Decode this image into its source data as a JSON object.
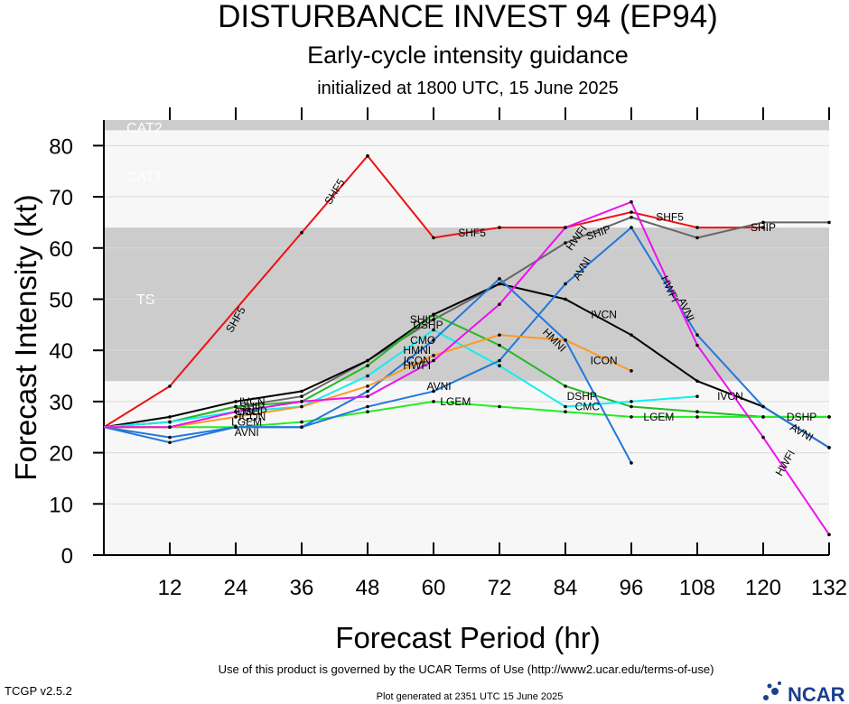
{
  "header": {
    "title": "DISTURBANCE INVEST 94 (EP94)",
    "subtitle": "Early-cycle intensity guidance",
    "init": "initialized at 1800 UTC, 15 June 2025"
  },
  "footer": {
    "terms": "Use of this product is governed by the UCAR Terms of Use (http://www2.ucar.edu/terms-of-use)",
    "version": "TCGP v2.5.2",
    "generated": "Plot generated at 2351 UTC   15 June 2025",
    "logo": "NCAR",
    "logo_icon": "ncar-logo-icon"
  },
  "chart_data": {
    "type": "line",
    "xlabel": "Forecast Period (hr)",
    "ylabel": "Forecast Intensity (kt)",
    "xlim": [
      0,
      132
    ],
    "ylim": [
      0,
      85
    ],
    "xticks": [
      12,
      24,
      36,
      48,
      60,
      72,
      84,
      96,
      108,
      120,
      132
    ],
    "yticks": [
      0,
      10,
      20,
      30,
      40,
      50,
      60,
      70,
      80
    ],
    "grid": true,
    "bands": [
      {
        "label": "TS",
        "y0": 34,
        "y1": 64,
        "color": "#cccccc"
      },
      {
        "label": "CAT1",
        "y0": 64,
        "y1": 83,
        "color": "#f7f7f7"
      },
      {
        "label": "CAT2",
        "y0": 83,
        "y1": 85,
        "color": "#cccccc"
      }
    ],
    "series": [
      {
        "name": "SHF5",
        "color": "#ee1111",
        "x": [
          0,
          12,
          36,
          48,
          60,
          72,
          84,
          96,
          108,
          120
        ],
        "y": [
          25,
          33,
          63,
          78,
          62,
          64,
          64,
          67,
          64,
          64
        ]
      },
      {
        "name": "SHIP",
        "color": "#666666",
        "x": [
          0,
          12,
          24,
          36,
          48,
          60,
          72,
          84,
          96,
          108,
          120,
          132
        ],
        "y": [
          25,
          26,
          29,
          31,
          38,
          46,
          53,
          61,
          66,
          62,
          65,
          65
        ]
      },
      {
        "name": "IVCN",
        "color": "#000000",
        "x": [
          0,
          12,
          24,
          36,
          48,
          60,
          72,
          84,
          96,
          108,
          120,
          132
        ],
        "y": [
          25,
          27,
          30,
          32,
          38,
          47,
          53,
          50,
          43,
          34,
          29,
          21
        ]
      },
      {
        "name": "DSHP",
        "color": "#22bb22",
        "x": [
          0,
          12,
          24,
          36,
          48,
          60,
          72,
          84,
          96,
          108,
          120,
          132
        ],
        "y": [
          25,
          26,
          29,
          30,
          37,
          47,
          41,
          33,
          29,
          28,
          27,
          27
        ]
      },
      {
        "name": "LGEM",
        "color": "#22ee22",
        "x": [
          0,
          12,
          24,
          36,
          48,
          60,
          72,
          84,
          96,
          108,
          120,
          132
        ],
        "y": [
          25,
          25,
          25,
          26,
          28,
          30,
          29,
          28,
          27,
          27,
          27,
          27
        ]
      },
      {
        "name": "CMC",
        "color": "#11eeee",
        "x": [
          0,
          12,
          24,
          36,
          48,
          60,
          72,
          84,
          96,
          108
        ],
        "y": [
          25,
          26,
          28,
          29,
          35,
          44,
          37,
          29,
          30,
          31
        ]
      },
      {
        "name": "HMNI",
        "color": "#2277dd",
        "x": [
          0,
          12,
          24,
          36,
          48,
          60,
          72,
          84,
          96
        ],
        "y": [
          25,
          22,
          25,
          25,
          32,
          42,
          54,
          42,
          18
        ]
      },
      {
        "name": "AVNI",
        "color": "#2277dd",
        "x": [
          0,
          12,
          24,
          36,
          48,
          60,
          72,
          84,
          96,
          108,
          120,
          132
        ],
        "y": [
          25,
          23,
          25,
          25,
          29,
          32,
          38,
          53,
          64,
          43,
          29,
          21
        ]
      },
      {
        "name": "ICON",
        "color": "#ff9922",
        "x": [
          0,
          12,
          24,
          36,
          48,
          60,
          72,
          84,
          96
        ],
        "y": [
          25,
          25,
          27,
          29,
          33,
          39,
          43,
          42,
          36
        ]
      },
      {
        "name": "HWFI",
        "color": "#ee11ee",
        "x": [
          0,
          12,
          24,
          36,
          48,
          60,
          72,
          84,
          96,
          108,
          120,
          132
        ],
        "y": [
          25,
          25,
          28,
          30,
          31,
          38,
          49,
          64,
          69,
          41,
          23,
          4
        ]
      }
    ],
    "labels": [
      {
        "text": "SHF5",
        "x": 24,
        "y": 46,
        "angle": -60
      },
      {
        "text": "SHF5",
        "x": 42,
        "y": 71,
        "angle": -58
      },
      {
        "text": "SHF5",
        "x": 67,
        "y": 63,
        "angle": 0
      },
      {
        "text": "SHF5",
        "x": 103,
        "y": 66,
        "angle": 0
      },
      {
        "text": "SHIP",
        "x": 120,
        "y": 64,
        "angle": 0
      },
      {
        "text": "SHIP",
        "x": 90,
        "y": 63,
        "angle": -20
      },
      {
        "text": "HWFI",
        "x": 86,
        "y": 62,
        "angle": -55
      },
      {
        "text": "AVNI",
        "x": 87,
        "y": 56,
        "angle": -60
      },
      {
        "text": "IVCN",
        "x": 27,
        "y": 30,
        "angle": 0
      },
      {
        "text": "IVCN",
        "x": 91,
        "y": 47,
        "angle": 0
      },
      {
        "text": "IVCN",
        "x": 114,
        "y": 31,
        "angle": 0
      },
      {
        "text": "HWFI",
        "x": 103,
        "y": 52,
        "angle": 65
      },
      {
        "text": "AVNI",
        "x": 106,
        "y": 48,
        "angle": 65
      },
      {
        "text": "AVNI",
        "x": 127,
        "y": 24,
        "angle": 30
      },
      {
        "text": "HWFI",
        "x": 124,
        "y": 18,
        "angle": -60
      },
      {
        "text": "DSHP",
        "x": 127,
        "y": 27,
        "angle": 0
      },
      {
        "text": "LGEM",
        "x": 101,
        "y": 27,
        "angle": 0
      },
      {
        "text": "LGEM",
        "x": 64,
        "y": 30,
        "angle": 0
      },
      {
        "text": "LGEM",
        "x": 26,
        "y": 26,
        "angle": 0
      },
      {
        "text": "AVNI",
        "x": 26,
        "y": 24,
        "angle": 0
      },
      {
        "text": "AVNI",
        "x": 61,
        "y": 33,
        "angle": 0
      },
      {
        "text": "DSHP",
        "x": 87,
        "y": 31,
        "angle": 0
      },
      {
        "text": "CMC",
        "x": 88,
        "y": 29,
        "angle": 0
      },
      {
        "text": "ICON",
        "x": 91,
        "y": 38,
        "angle": 0
      },
      {
        "text": "HMNI",
        "x": 82,
        "y": 42,
        "angle": 45
      },
      {
        "text": "CMC",
        "x": 26,
        "y": 28,
        "angle": 0
      },
      {
        "text": "SHIP",
        "x": 27,
        "y": 29,
        "angle": 0
      },
      {
        "text": "DSHP",
        "x": 27,
        "y": 28,
        "angle": 0
      },
      {
        "text": "ICON",
        "x": 27,
        "y": 27,
        "angle": 0
      },
      {
        "text": "SHIP",
        "x": 58,
        "y": 46,
        "angle": 0
      },
      {
        "text": "DSHP",
        "x": 59,
        "y": 45,
        "angle": 0
      },
      {
        "text": "CMC",
        "x": 58,
        "y": 42,
        "angle": 0
      },
      {
        "text": "HMNI",
        "x": 57,
        "y": 40,
        "angle": 0
      },
      {
        "text": "ICON",
        "x": 57,
        "y": 38,
        "angle": 0
      },
      {
        "text": "HWFI",
        "x": 57,
        "y": 37,
        "angle": 0
      }
    ]
  }
}
